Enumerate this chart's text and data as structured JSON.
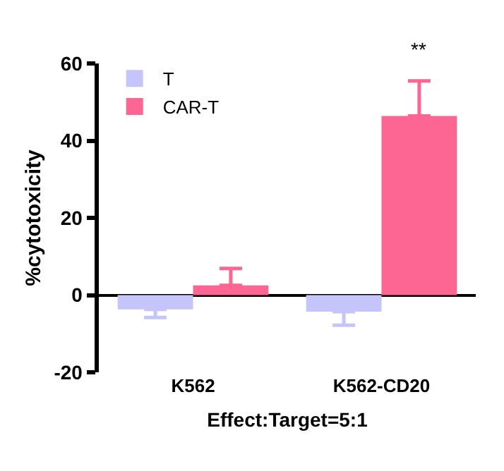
{
  "chart_data": {
    "type": "bar",
    "ylabel": "%cytotoxicity",
    "xlabel": "Effect:Target=5:1",
    "categories": [
      "K562",
      "K562-CD20"
    ],
    "series": [
      {
        "name": "T",
        "color": "#c5c5fb",
        "values": [
          -3.7,
          -4.3
        ],
        "errors": [
          [
            -5.8,
            -3.7
          ],
          [
            -7.8,
            -4.3
          ]
        ]
      },
      {
        "name": "CAR-T",
        "color": "#fd6592",
        "values": [
          2.5,
          46.4
        ],
        "errors": [
          [
            2.5,
            6.9
          ],
          [
            46.4,
            55.5
          ]
        ]
      }
    ],
    "ylim": [
      -20,
      60
    ],
    "yticks": [
      -20,
      0,
      20,
      40,
      60
    ],
    "legend": "top left",
    "annotations": [
      "**"
    ]
  }
}
